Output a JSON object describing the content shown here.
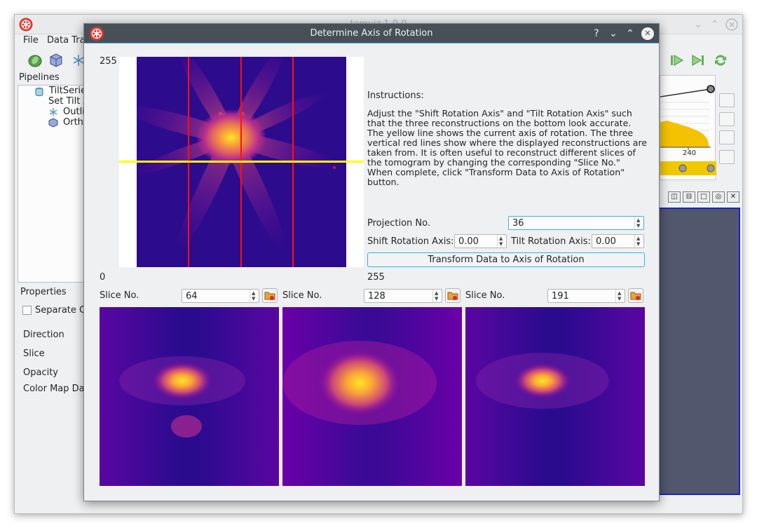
{
  "main_window": {
    "title": "tomviz 1.9.0",
    "menus": [
      "File",
      "Data Tra"
    ],
    "pipelines_label": "Pipelines",
    "tree": [
      {
        "label": "TiltSerie",
        "icon": "dataset-icon"
      },
      {
        "label": "Set Tilt A",
        "icon": ""
      },
      {
        "label": "Outlin",
        "icon": "outline-icon"
      },
      {
        "label": "Ortho",
        "icon": "orthoslice-icon"
      }
    ],
    "properties_label": "Properties",
    "separate_label": "Separate Co",
    "property_rows": [
      "Direction",
      "Slice",
      "Opacity",
      "Color Map Data"
    ],
    "histogram_tick": "240"
  },
  "dialog": {
    "title": "Determine Axis of Rotation",
    "axis_top": "255",
    "axis_left_bottom": "0",
    "axis_right_bottom": "255",
    "instructions_title": "Instructions:",
    "instructions_text": "Adjust the \"Shift Rotation Axis\" and \"Tilt Rotation Axis\" such that the three reconstructions on the bottom look accurate. The yellow line shows the current axis of rotation. The three vertical red lines show where the displayed reconstructions are taken from. It is often useful to reconstruct different slices of the tomogram by changing the corresponding \"Slice No.\" When complete, click \"Transform Data to Axis of Rotation\" button.",
    "projection_label": "Projection No.",
    "projection_value": "36",
    "shift_label": "Shift Rotation Axis:",
    "shift_value": "0.00",
    "tilt_label": "Tilt Rotation Axis:",
    "tilt_value": "0.00",
    "transform_button": "Transform Data to Axis of Rotation",
    "slices": [
      {
        "label": "Slice No.",
        "value": "64"
      },
      {
        "label": "Slice No.",
        "value": "128"
      },
      {
        "label": "Slice No.",
        "value": "191"
      }
    ]
  },
  "colors": {
    "accent": "#3daee9",
    "dialog_title_bg": "#475057",
    "axis_line": "#ffff00",
    "slice_line": "#ff1010",
    "plasma_dark": "#2c0c8c"
  }
}
